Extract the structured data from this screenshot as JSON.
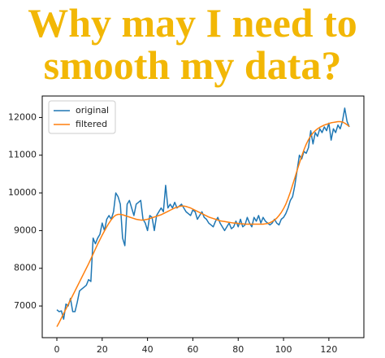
{
  "chart_data": {
    "type": "line",
    "title": "Why may I need to smooth my data?",
    "x": [
      0,
      1,
      2,
      3,
      4,
      5,
      6,
      7,
      8,
      9,
      10,
      11,
      12,
      13,
      14,
      15,
      16,
      17,
      18,
      19,
      20,
      21,
      22,
      23,
      24,
      25,
      26,
      27,
      28,
      29,
      30,
      31,
      32,
      33,
      34,
      35,
      36,
      37,
      38,
      39,
      40,
      41,
      42,
      43,
      44,
      45,
      46,
      47,
      48,
      49,
      50,
      51,
      52,
      53,
      54,
      55,
      56,
      57,
      58,
      59,
      60,
      61,
      62,
      63,
      64,
      65,
      66,
      67,
      68,
      69,
      70,
      71,
      72,
      73,
      74,
      75,
      76,
      77,
      78,
      79,
      80,
      81,
      82,
      83,
      84,
      85,
      86,
      87,
      88,
      89,
      90,
      91,
      92,
      93,
      94,
      95,
      96,
      97,
      98,
      99,
      100,
      101,
      102,
      103,
      104,
      105,
      106,
      107,
      108,
      109,
      110,
      111,
      112,
      113,
      114,
      115,
      116,
      117,
      118,
      119,
      120,
      121,
      122,
      123,
      124,
      125,
      126,
      127,
      128,
      129
    ],
    "series": [
      {
        "name": "original",
        "color": "#1f77b4",
        "values": [
          6900,
          6850,
          6870,
          6650,
          7050,
          7000,
          7200,
          6850,
          6850,
          7100,
          7400,
          7450,
          7500,
          7550,
          7700,
          7650,
          8800,
          8650,
          8800,
          8900,
          9200,
          9000,
          9300,
          9400,
          9300,
          9500,
          10000,
          9900,
          9700,
          8800,
          8600,
          9700,
          9800,
          9600,
          9400,
          9700,
          9750,
          9800,
          9300,
          9200,
          9000,
          9400,
          9350,
          9000,
          9400,
          9500,
          9600,
          9500,
          10200,
          9600,
          9700,
          9600,
          9750,
          9600,
          9650,
          9700,
          9600,
          9500,
          9450,
          9400,
          9550,
          9500,
          9300,
          9400,
          9500,
          9350,
          9300,
          9200,
          9150,
          9100,
          9250,
          9350,
          9200,
          9100,
          9000,
          9100,
          9200,
          9050,
          9100,
          9250,
          9100,
          9300,
          9100,
          9150,
          9350,
          9200,
          9100,
          9350,
          9250,
          9400,
          9200,
          9350,
          9250,
          9200,
          9150,
          9200,
          9300,
          9200,
          9150,
          9300,
          9350,
          9450,
          9600,
          9800,
          9900,
          10200,
          10600,
          11000,
          10900,
          11100,
          11050,
          11200,
          11650,
          11300,
          11600,
          11500,
          11700,
          11600,
          11750,
          11650,
          11850,
          11400,
          11700,
          11600,
          11800,
          11700,
          11900,
          12250,
          11900,
          11750
        ]
      },
      {
        "name": "filtered",
        "color": "#ff7f0e",
        "values": [
          6450,
          6560,
          6680,
          6800,
          6920,
          7040,
          7160,
          7280,
          7400,
          7520,
          7640,
          7760,
          7880,
          8000,
          8120,
          8250,
          8380,
          8510,
          8640,
          8760,
          8880,
          8990,
          9100,
          9200,
          9290,
          9360,
          9410,
          9430,
          9430,
          9420,
          9400,
          9380,
          9360,
          9340,
          9320,
          9300,
          9290,
          9280,
          9280,
          9290,
          9300,
          9320,
          9340,
          9360,
          9380,
          9400,
          9420,
          9450,
          9480,
          9510,
          9540,
          9570,
          9600,
          9620,
          9640,
          9650,
          9650,
          9640,
          9620,
          9600,
          9570,
          9540,
          9510,
          9480,
          9450,
          9420,
          9390,
          9360,
          9340,
          9320,
          9300,
          9280,
          9260,
          9250,
          9240,
          9230,
          9220,
          9210,
          9200,
          9200,
          9190,
          9180,
          9180,
          9170,
          9170,
          9170,
          9170,
          9170,
          9170,
          9170,
          9170,
          9170,
          9180,
          9190,
          9210,
          9240,
          9280,
          9330,
          9400,
          9480,
          9580,
          9700,
          9850,
          10020,
          10210,
          10400,
          10600,
          10790,
          10970,
          11140,
          11290,
          11410,
          11510,
          11590,
          11650,
          11700,
          11740,
          11770,
          11800,
          11820,
          11840,
          11860,
          11870,
          11880,
          11890,
          11890,
          11880,
          11850,
          11810,
          11760
        ]
      }
    ],
    "xlim": [
      -6.45,
      135.45
    ],
    "xticks": [
      0,
      20,
      40,
      60,
      80,
      100,
      120
    ],
    "ylim": [
      6160,
      12570
    ],
    "yticks": [
      7000,
      8000,
      9000,
      10000,
      11000,
      12000
    ],
    "grid": false,
    "legend": "upper-left"
  }
}
